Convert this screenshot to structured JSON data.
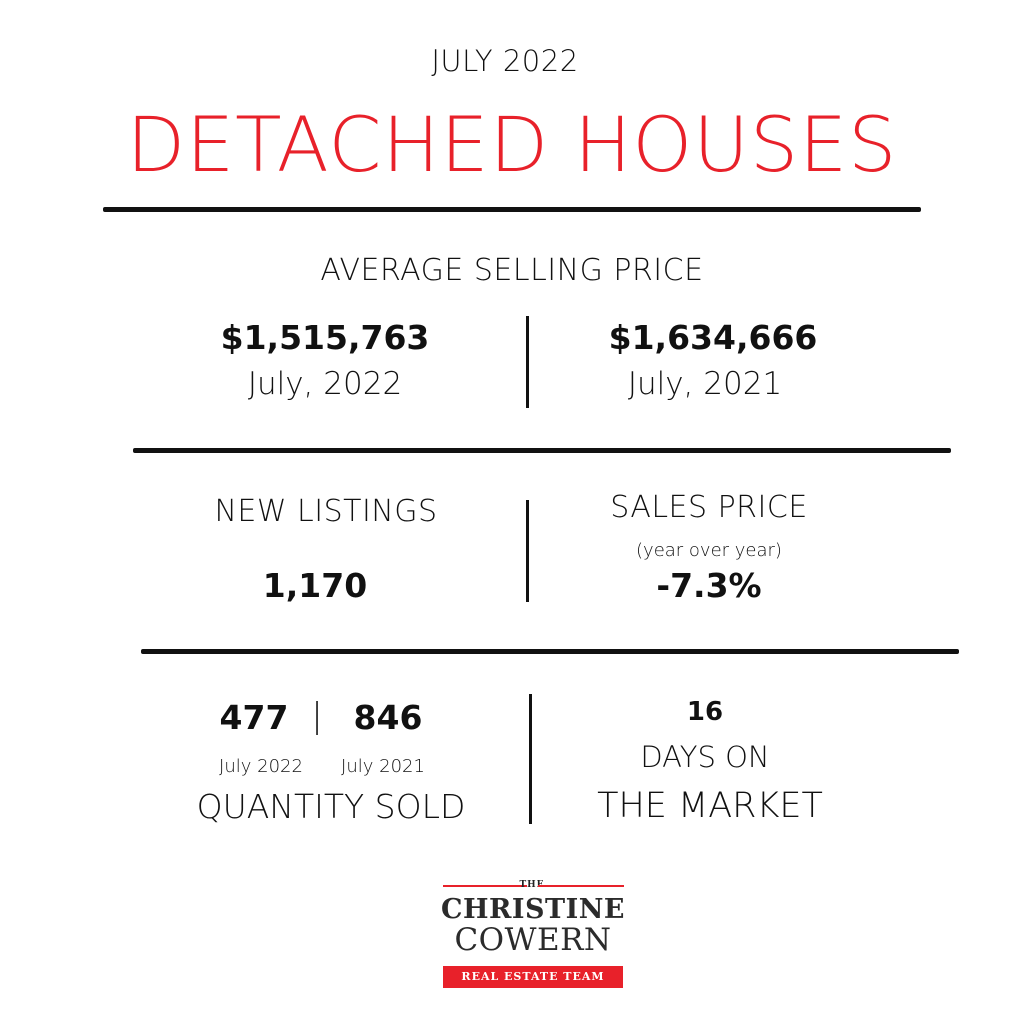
{
  "header": {
    "month": "JULY 2022",
    "title": "DETACHED HOUSES"
  },
  "avg_price": {
    "label": "AVERAGE SELLING PRICE",
    "current_value": "$1,515,763",
    "current_date": "July, 2022",
    "previous_value": "$1,634,666",
    "previous_date": "July, 2021"
  },
  "new_listings": {
    "label": "NEW LISTINGS",
    "value": "1,170"
  },
  "sales_price": {
    "label": "SALES PRICE",
    "sublabel": "(year over year)",
    "value": "-7.3%"
  },
  "quantity_sold": {
    "current_value": "477",
    "separator": "|",
    "previous_value": "846",
    "current_date": "July 2022",
    "previous_date": "July 2021",
    "label": "QUANTITY SOLD"
  },
  "days_on_market": {
    "value": "16",
    "label_line1": "DAYS ON",
    "label_line2": "THE MARKET"
  },
  "logo": {
    "the": "THE",
    "line1": "CHRISTINE",
    "line2": "COWERN",
    "badge": "REAL ESTATE TEAM",
    "accent_color": "#e8212a"
  },
  "colors": {
    "accent": "#e8212a",
    "text": "#111111",
    "background": "#ffffff"
  }
}
